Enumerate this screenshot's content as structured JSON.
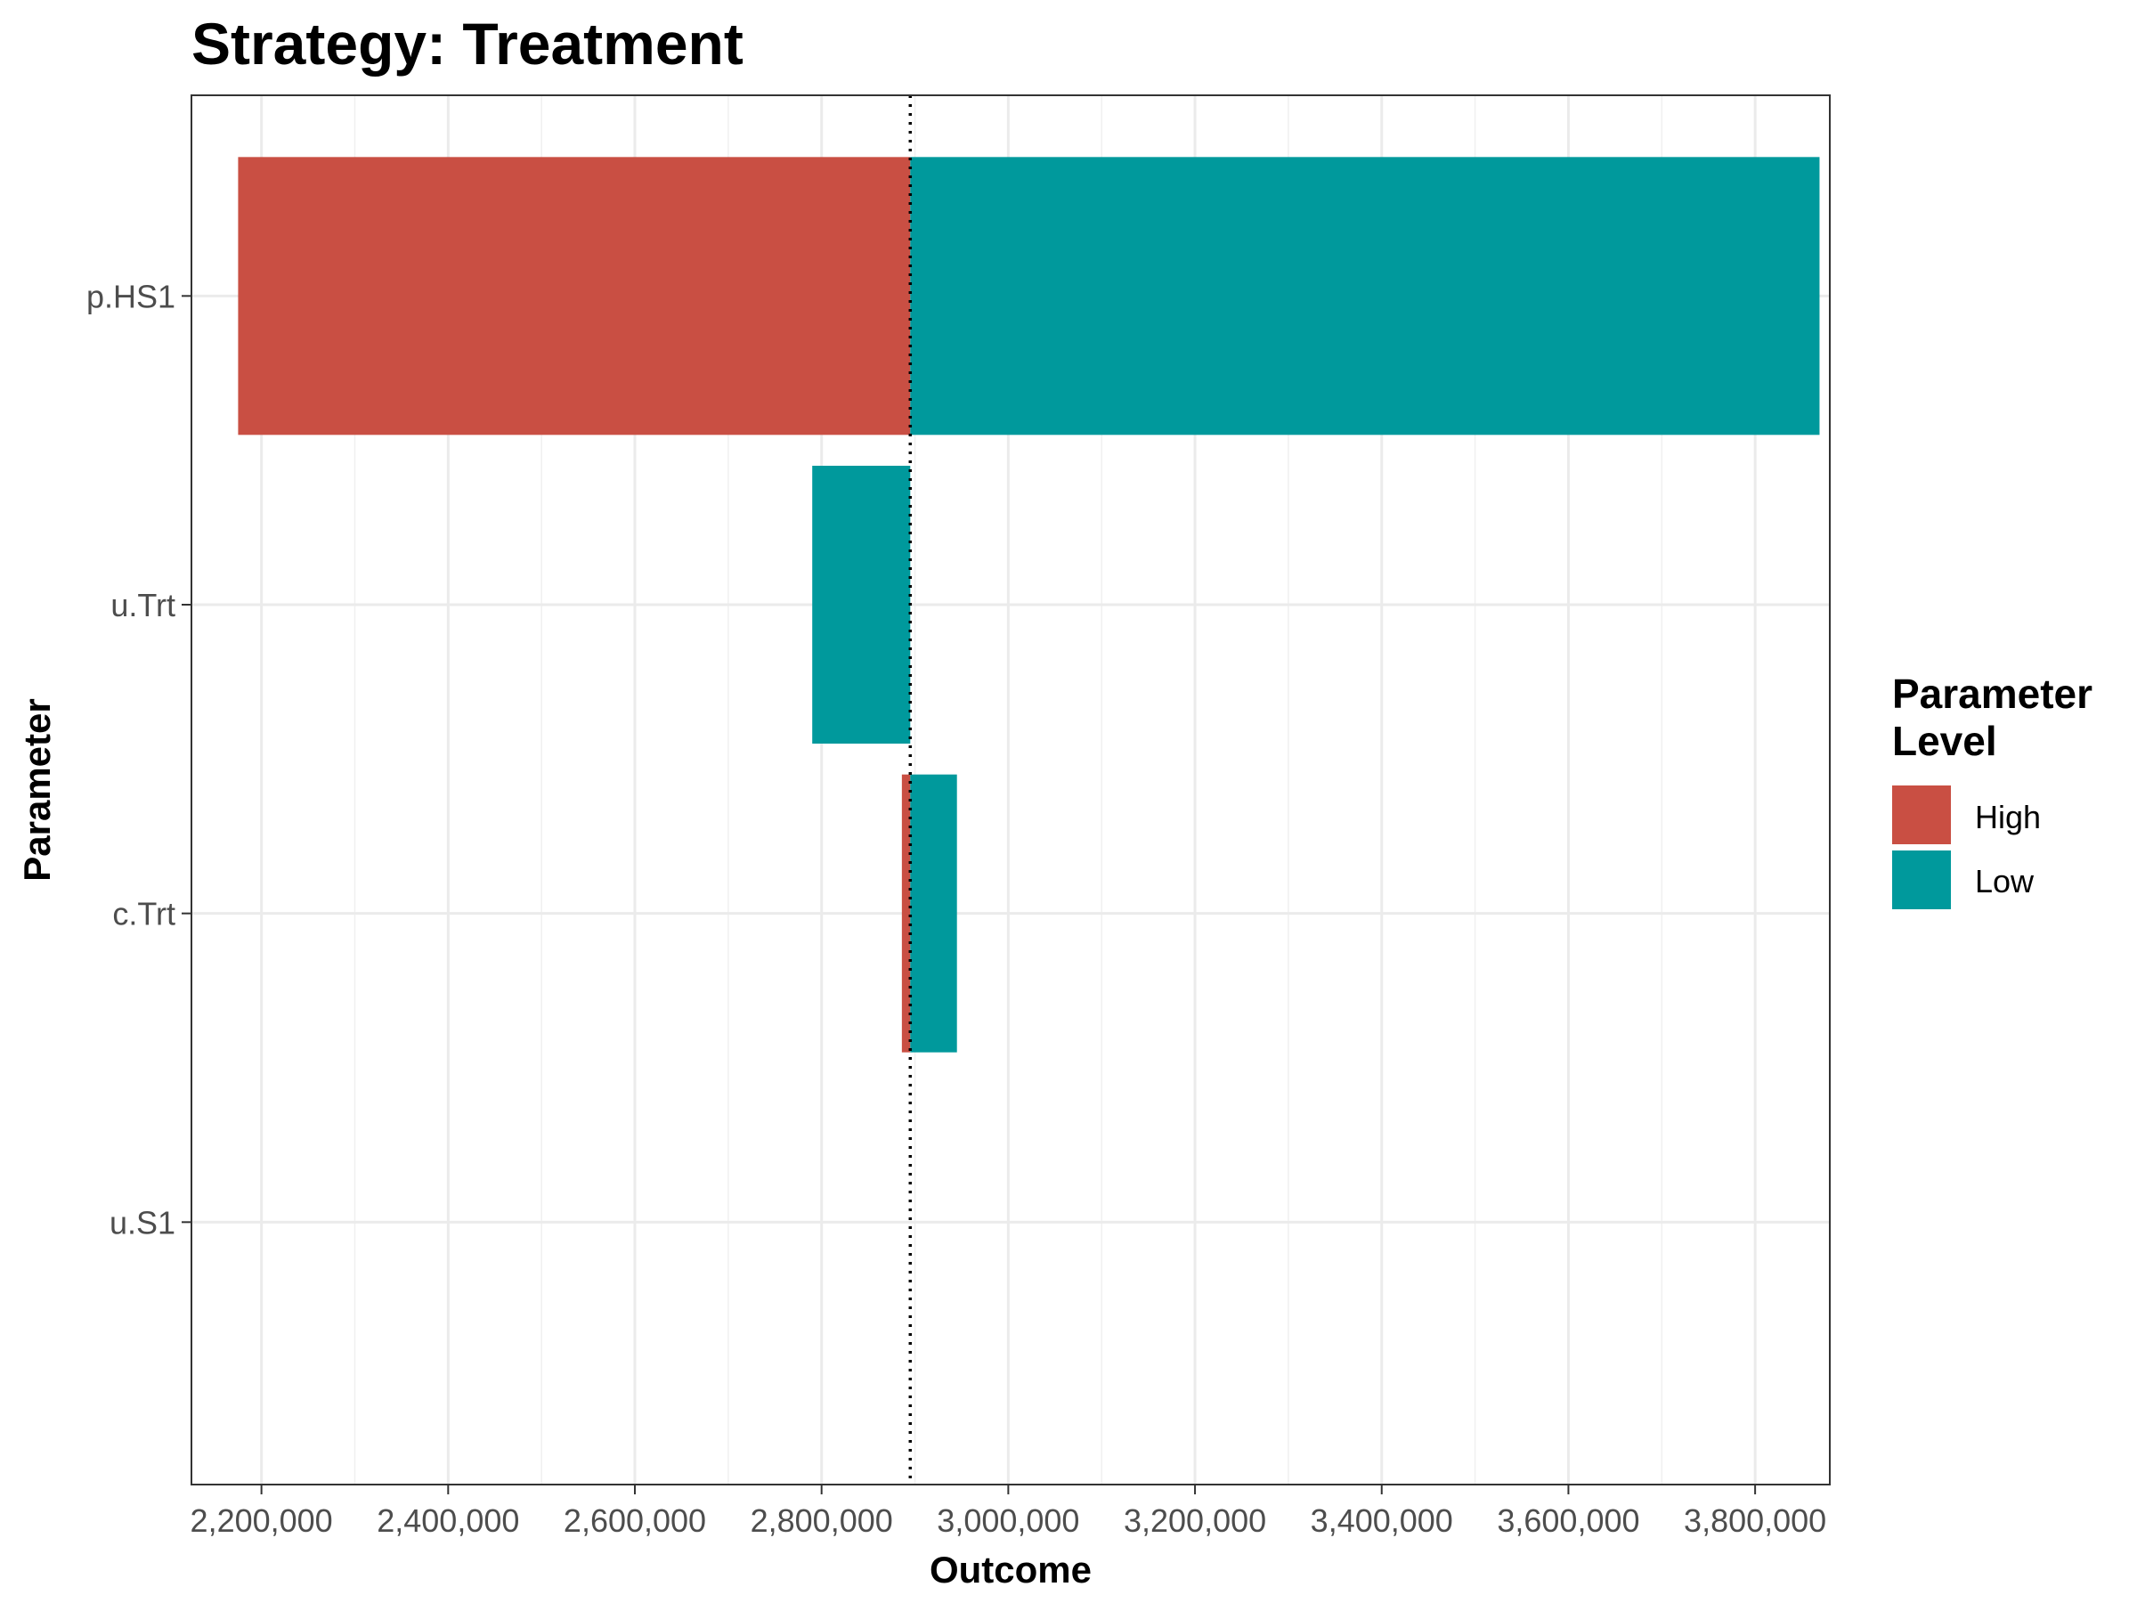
{
  "chart_data": {
    "type": "bar",
    "orientation": "horizontal",
    "title": "Strategy: Treatment",
    "xlabel": "Outcome",
    "ylabel": "Parameter",
    "xlim": [
      2125000,
      3880000
    ],
    "x_ticks": [
      2200000,
      2400000,
      2600000,
      2800000,
      3000000,
      3200000,
      3400000,
      3600000,
      3800000
    ],
    "x_tick_labels": [
      "2,200,000",
      "2,400,000",
      "2,600,000",
      "2,800,000",
      "3,000,000",
      "3,200,000",
      "3,400,000",
      "3,600,000",
      "3,800,000"
    ],
    "categories": [
      "p.HS1",
      "u.Trt",
      "c.Trt",
      "u.S1"
    ],
    "base_value": 2895000,
    "series": [
      {
        "name": "High",
        "color": "#C94F43",
        "ranges": [
          [
            2175000,
            2895000
          ],
          null,
          [
            2886000,
            2895000
          ],
          null
        ]
      },
      {
        "name": "Low",
        "color": "#00999C",
        "ranges": [
          [
            2895000,
            3869000
          ],
          [
            2790000,
            2895000
          ],
          [
            2895000,
            2945000
          ],
          null
        ]
      }
    ],
    "legend": {
      "title": "Parameter\nLevel",
      "title_lines": [
        "Parameter",
        "Level"
      ],
      "position": "right"
    },
    "grid": true,
    "reference_line": {
      "style": "dotted",
      "color": "#000000"
    }
  }
}
